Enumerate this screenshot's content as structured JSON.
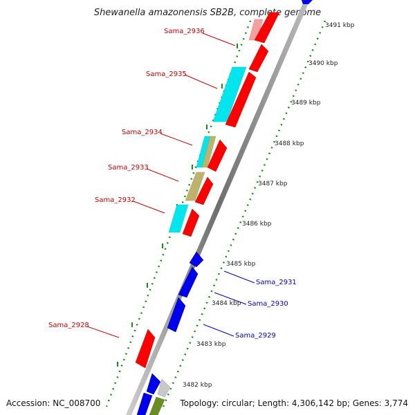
{
  "title": "Shewanella amazonensis SB2B, complete genome",
  "accession": "Accession: NC_008700",
  "topology": "Topology: circular; Length: 4,306,142 bp; Genes: 3,774",
  "colors": {
    "red": "#ff0000",
    "pink": "#f4a0a0",
    "cyan": "#00e5ee",
    "khaki": "#bdb36b",
    "blue": "#0000ee",
    "olive": "#6b8e23",
    "gray": "#c8c8c8",
    "backbone": "#7a7a7a",
    "tick_green": "#1a8a1a",
    "label_red": "#cc0000",
    "label_blue": "#0000cc"
  },
  "kbp_ticks": [
    "3491 kbp",
    "3490 kbp",
    "3489 kbp",
    "3488 kbp",
    "3487 kbp",
    "3486 kbp",
    "3485 kbp",
    "3484 kbp",
    "3483 kbp",
    "3482 kbp"
  ],
  "gene_labels_left": [
    "Sama_2936",
    "Sama_2935",
    "Sama_2934",
    "Sama_2933",
    "Sama_2932",
    "Sama_2928"
  ],
  "gene_labels_right": [
    "Sama_2931",
    "Sama_2930",
    "Sama_2929"
  ]
}
